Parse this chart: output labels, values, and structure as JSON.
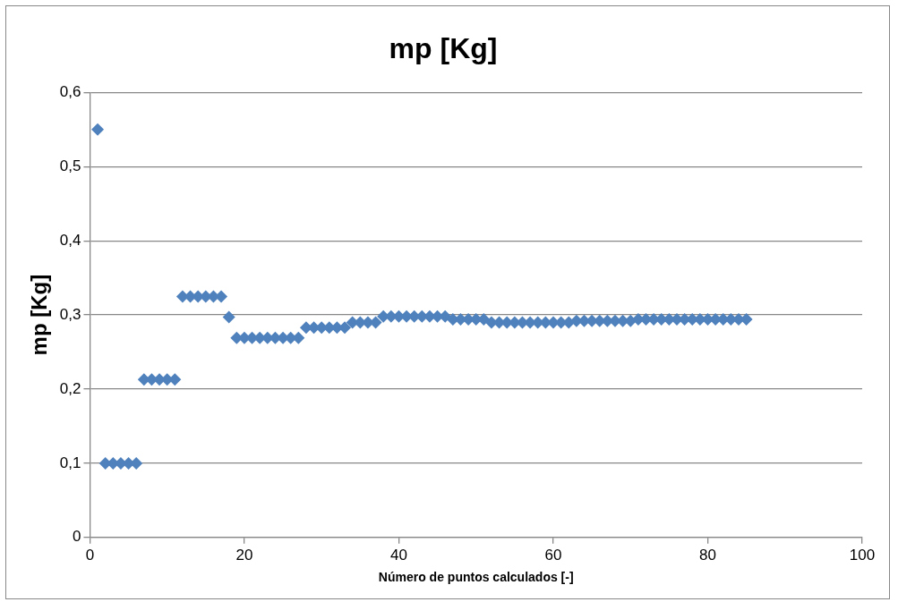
{
  "chart_data": {
    "type": "scatter",
    "title": "mp [Kg]",
    "xlabel": "Número de puntos calculados [-]",
    "ylabel": "mp [Kg]",
    "x": [
      1,
      2,
      3,
      4,
      5,
      6,
      7,
      8,
      9,
      10,
      11,
      12,
      13,
      14,
      15,
      16,
      17,
      18,
      19,
      20,
      21,
      22,
      23,
      24,
      25,
      26,
      27,
      28,
      29,
      30,
      31,
      32,
      33,
      34,
      35,
      36,
      37,
      38,
      39,
      40,
      41,
      42,
      43,
      44,
      45,
      46,
      47,
      48,
      49,
      50,
      51,
      52,
      53,
      54,
      55,
      56,
      57,
      58,
      59,
      60,
      61,
      62,
      63,
      64,
      65,
      66,
      67,
      68,
      69,
      70,
      71,
      72,
      73,
      74,
      75,
      76,
      77,
      78,
      79,
      80,
      81,
      82,
      83,
      84,
      85
    ],
    "series": [
      {
        "color": "#4f81bd",
        "values": [
          0.55,
          0.1,
          0.1,
          0.1,
          0.1,
          0.1,
          0.213,
          0.213,
          0.213,
          0.213,
          0.213,
          0.325,
          0.325,
          0.325,
          0.325,
          0.325,
          0.325,
          0.297,
          0.269,
          0.269,
          0.269,
          0.269,
          0.269,
          0.269,
          0.269,
          0.269,
          0.269,
          0.283,
          0.283,
          0.283,
          0.283,
          0.283,
          0.283,
          0.29,
          0.29,
          0.29,
          0.29,
          0.298,
          0.298,
          0.298,
          0.298,
          0.298,
          0.298,
          0.298,
          0.298,
          0.298,
          0.294,
          0.294,
          0.294,
          0.294,
          0.294,
          0.29,
          0.29,
          0.29,
          0.29,
          0.29,
          0.29,
          0.29,
          0.29,
          0.29,
          0.29,
          0.29,
          0.292,
          0.292,
          0.292,
          0.292,
          0.292,
          0.292,
          0.292,
          0.292,
          0.294,
          0.294,
          0.294,
          0.294,
          0.294,
          0.294,
          0.294,
          0.294,
          0.294,
          0.294,
          0.294,
          0.294,
          0.294,
          0.294,
          0.294
        ]
      }
    ],
    "xlim": [
      0,
      100
    ],
    "xticks": [
      0,
      20,
      40,
      60,
      80,
      100
    ],
    "ylim": [
      0,
      0.6
    ],
    "yticks": [
      {
        "value": 0,
        "label": "0"
      },
      {
        "value": 0.1,
        "label": "0,1"
      },
      {
        "value": 0.2,
        "label": "0,2"
      },
      {
        "value": 0.3,
        "label": "0,3"
      },
      {
        "value": 0.4,
        "label": "0,4"
      },
      {
        "value": 0.5,
        "label": "0,5"
      },
      {
        "value": 0.6,
        "label": "0,6"
      }
    ],
    "grid": "y",
    "legend": false,
    "marker": "diamond"
  }
}
